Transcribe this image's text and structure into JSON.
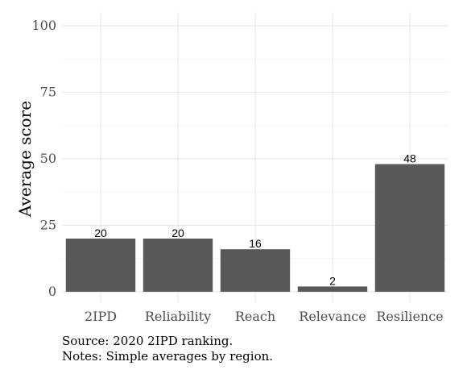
{
  "chart_data": {
    "type": "bar",
    "categories": [
      "2IPD",
      "Reliability",
      "Reach",
      "Relevance",
      "Resilience"
    ],
    "values": [
      20,
      20,
      16,
      2,
      48
    ],
    "data_labels": [
      "20",
      "20",
      "16",
      "2",
      "48"
    ],
    "ylabel": "Average score",
    "xlabel": "",
    "ylim": [
      0,
      100
    ],
    "yticks": [
      0,
      25,
      50,
      75,
      100
    ],
    "grid": true,
    "bar_color": "#595959"
  },
  "caption": {
    "source": "Source: 2020 2IPD ranking.",
    "notes": "Notes: Simple averages by region."
  }
}
